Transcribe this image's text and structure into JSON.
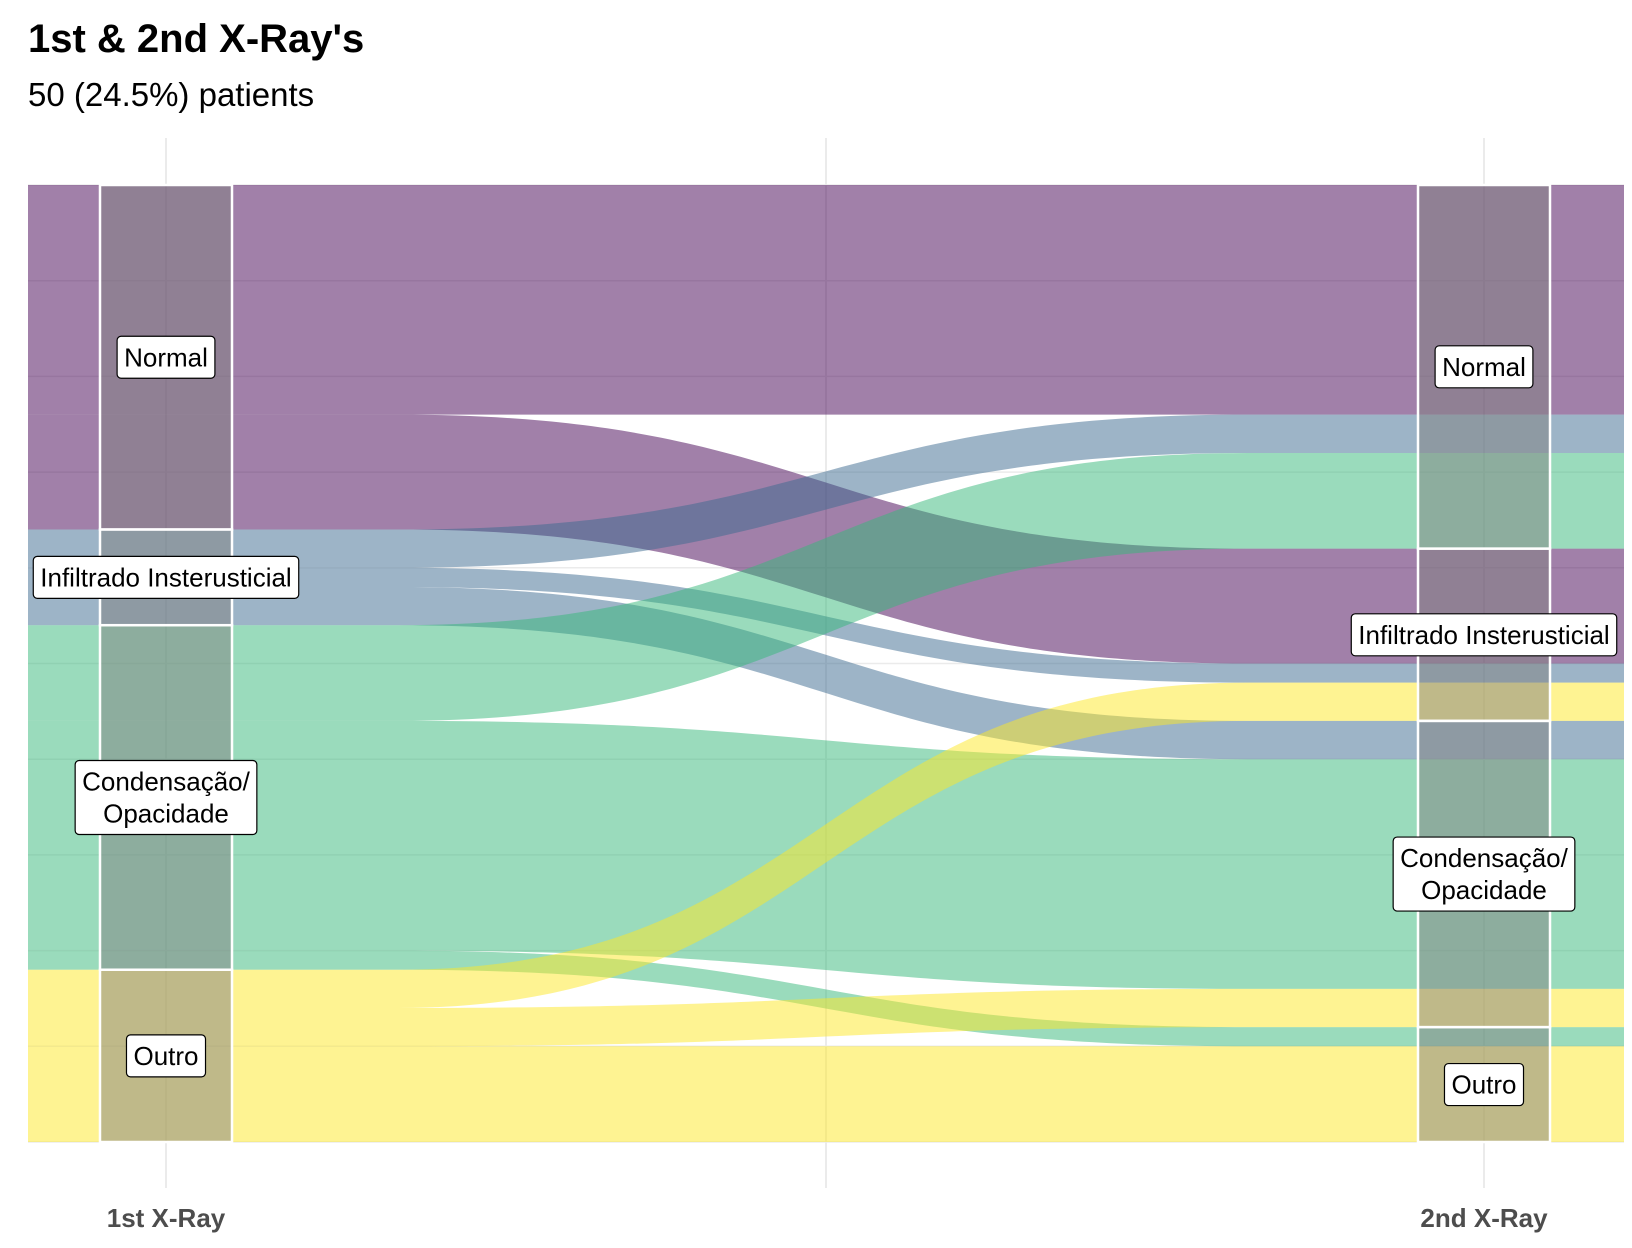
{
  "chart_data": {
    "type": "alluvial",
    "title": "1st & 2nd X-Ray's",
    "subtitle": "50 (24.5%) patients",
    "axes": [
      "1st X-Ray",
      "2nd X-Ray"
    ],
    "categories": [
      {
        "key": "normal",
        "label": "Normal",
        "color": "#440154"
      },
      {
        "key": "infiltrado",
        "label": "Infiltrado Insterusticial",
        "color": "#3b6a8f"
      },
      {
        "key": "condensacao",
        "label": "Condensação/\nOpacidade",
        "color": "#35b779"
      },
      {
        "key": "outro",
        "label": "Outro",
        "color": "#fde725"
      }
    ],
    "flows": [
      {
        "from": "normal",
        "to": "normal",
        "value": 12
      },
      {
        "from": "normal",
        "to": "infiltrado",
        "value": 6
      },
      {
        "from": "infiltrado",
        "to": "normal",
        "value": 2
      },
      {
        "from": "infiltrado",
        "to": "infiltrado",
        "value": 1
      },
      {
        "from": "infiltrado",
        "to": "condensacao",
        "value": 2
      },
      {
        "from": "condensacao",
        "to": "normal",
        "value": 5
      },
      {
        "from": "condensacao",
        "to": "condensacao",
        "value": 12
      },
      {
        "from": "condensacao",
        "to": "outro",
        "value": 1
      },
      {
        "from": "outro",
        "to": "infiltrado",
        "value": 2
      },
      {
        "from": "outro",
        "to": "condensacao",
        "value": 2
      },
      {
        "from": "outro",
        "to": "outro",
        "value": 5
      }
    ],
    "grid": true,
    "legend": "none"
  }
}
